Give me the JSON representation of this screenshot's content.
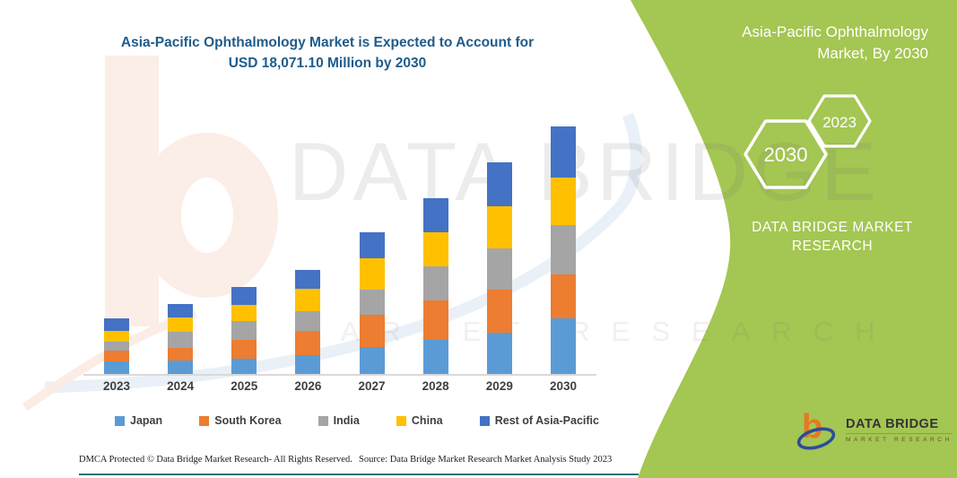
{
  "chart": {
    "title_line1": "Asia-Pacific Ophthalmology Market is Expected to Account for",
    "title_line2": "USD 18,071.10 Million by 2030",
    "title_color": "#1F5C8B"
  },
  "chart_data": {
    "type": "bar",
    "stacked": true,
    "unit": "USD Million",
    "title": "Asia-Pacific Ophthalmology Market is Expected to Account for USD 18,071.10 Million by 2030",
    "xlabel": "",
    "ylabel": "",
    "ylim": [
      0,
      18071.1
    ],
    "grid": false,
    "legend_position": "bottom",
    "categories": [
      "2023",
      "2024",
      "2025",
      "2026",
      "2027",
      "2028",
      "2029",
      "2030"
    ],
    "series": [
      {
        "name": "Japan",
        "color": "#5B9BD5",
        "values": [
          945,
          980,
          1135,
          1350,
          1940,
          2510,
          2985,
          4080
        ]
      },
      {
        "name": "South Korea",
        "color": "#ED7D31",
        "values": [
          760,
          915,
          1375,
          1815,
          2355,
          2880,
          3170,
          3165
        ]
      },
      {
        "name": "India",
        "color": "#A5A5A5",
        "values": [
          655,
          1180,
          1355,
          1420,
          1860,
          2440,
          2985,
          3600
        ]
      },
      {
        "name": "China",
        "color": "#FFC000",
        "values": [
          765,
          1050,
          1180,
          1610,
          2290,
          2535,
          3125,
          3490
        ]
      },
      {
        "name": "Rest of Asia-Pacific",
        "color": "#4472C4",
        "values": [
          915,
          980,
          1310,
          1375,
          1900,
          2490,
          3205,
          3736.1
        ]
      }
    ],
    "totals": [
      4040,
      5105,
      6355,
      7570,
      10345,
      12855,
      15470,
      18071.1
    ]
  },
  "panel": {
    "title_line1": "Asia-Pacific Ophthalmology",
    "title_line2": "Market, By 2030",
    "hex_big": "2030",
    "hex_small": "2023",
    "brand_line1": "DATA BRIDGE MARKET",
    "brand_line2": "RESEARCH",
    "green": "#A4C652"
  },
  "watermark": {
    "line1": "DATA BRIDGE",
    "line2": "MARKET RESEARCH"
  },
  "logo": {
    "name": "DATA BRIDGE",
    "sub": "MARKET RESEARCH",
    "orange": "#E87722",
    "blue": "#2B4C9B"
  },
  "footer": {
    "dmca": "DMCA Protected © Data Bridge Market Research-  All Rights Reserved.",
    "source": "Source: Data Bridge Market Research  Market Analysis Study 2023"
  }
}
